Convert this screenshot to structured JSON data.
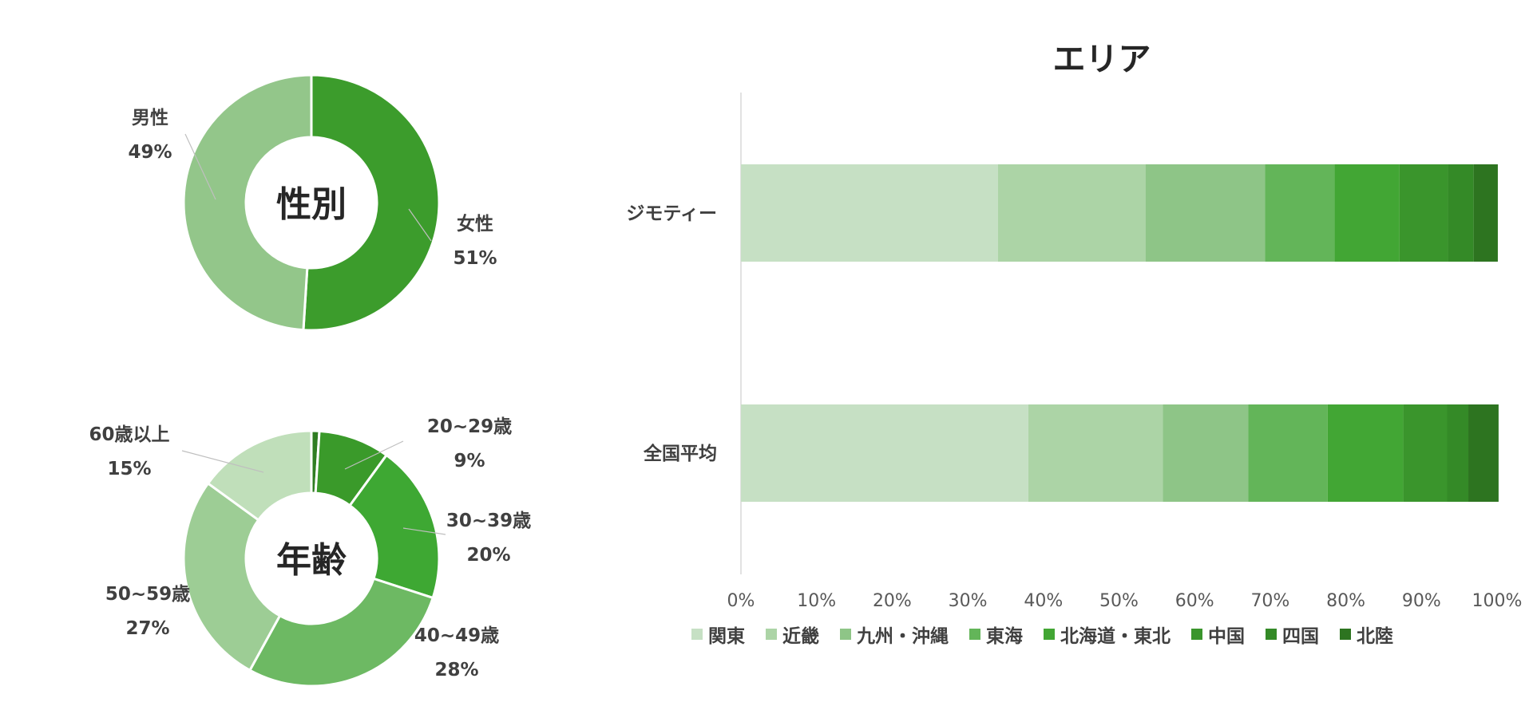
{
  "chart_data": [
    {
      "type": "pie",
      "donut": true,
      "center_label": "性別",
      "slices": [
        {
          "label": "女性",
          "pct_label": "51%",
          "value": 51,
          "color": "#3c9c2c"
        },
        {
          "label": "男性",
          "pct_label": "49%",
          "value": 49,
          "color": "#93c68a"
        }
      ]
    },
    {
      "type": "pie",
      "donut": true,
      "center_label": "年齢",
      "slices": [
        {
          "label": "",
          "pct_label": "",
          "value": 1,
          "color": "#2f7d22"
        },
        {
          "label": "20~29歳",
          "pct_label": "9%",
          "value": 9,
          "color": "#3a9a2a"
        },
        {
          "label": "30~39歳",
          "pct_label": "20%",
          "value": 20,
          "color": "#3ea833"
        },
        {
          "label": "40~49歳",
          "pct_label": "28%",
          "value": 28,
          "color": "#6db963"
        },
        {
          "label": "50~59歳",
          "pct_label": "27%",
          "value": 27,
          "color": "#9dcd95"
        },
        {
          "label": "60歳以上",
          "pct_label": "15%",
          "value": 15,
          "color": "#c0dfba"
        }
      ]
    },
    {
      "type": "bar",
      "orientation": "horizontal",
      "stacked": "percent",
      "title": "エリア",
      "categories": [
        "ジモティー",
        "全国平均"
      ],
      "xlim": [
        0,
        100
      ],
      "x_ticks": [
        "0%",
        "10%",
        "20%",
        "30%",
        "40%",
        "50%",
        "60%",
        "70%",
        "80%",
        "90%",
        "100%"
      ],
      "legend_position": "bottom",
      "series": [
        {
          "name": "関東",
          "color": "#c6e0c4",
          "values": [
            34,
            38
          ]
        },
        {
          "name": "近畿",
          "color": "#acd4a6",
          "values": [
            19.5,
            17.8
          ]
        },
        {
          "name": "九州・沖縄",
          "color": "#8ec587",
          "values": [
            15.8,
            11.3
          ]
        },
        {
          "name": "東海",
          "color": "#63b559",
          "values": [
            9.2,
            10.5
          ]
        },
        {
          "name": "北海道・東北",
          "color": "#42a634",
          "values": [
            8.6,
            10
          ]
        },
        {
          "name": "中国",
          "color": "#3a952c",
          "values": [
            6.4,
            5.8
          ]
        },
        {
          "name": "四国",
          "color": "#348a27",
          "values": [
            3.4,
            2.8
          ]
        },
        {
          "name": "北陸",
          "color": "#2d7420",
          "values": [
            3.2,
            4
          ]
        }
      ]
    }
  ]
}
